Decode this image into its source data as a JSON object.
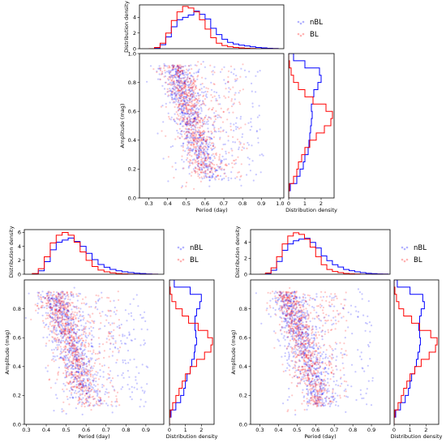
{
  "chart_data": [
    {
      "type": "scatter",
      "panel": "top",
      "xlabel": "Period (day)",
      "ylabel": "Amplitude (mag)",
      "xlim": [
        0.25,
        1.02
      ],
      "ylim": [
        0.0,
        1.0
      ],
      "xticks": [
        "0.3",
        "0.4",
        "0.5",
        "0.6",
        "0.7",
        "0.8",
        "0.9",
        "1.0"
      ],
      "yticks": [
        "0.0",
        "0.2",
        "0.4",
        "0.6",
        "0.8",
        "1.0"
      ],
      "legend": {
        "entries": [
          "nBL",
          "BL"
        ],
        "position": "top-right, outside"
      },
      "series": [
        {
          "name": "nBL",
          "color": "#0000ff",
          "trend": {
            "p_at_amp_high": 0.44,
            "p_at_amp_low": 0.62,
            "spread": 0.06,
            "tail_to": 0.95
          }
        },
        {
          "name": "BL",
          "color": "#ff0000",
          "trend": {
            "p_at_amp_high": 0.45,
            "p_at_amp_low": 0.61,
            "spread": 0.055,
            "tail_to": 0.85
          }
        }
      ],
      "top_hist": {
        "ylabel": "Distribution density",
        "ylim": [
          0,
          5.6
        ],
        "yticks": [
          "0",
          "2",
          "4"
        ],
        "bin_edges": [
          0.3,
          0.33,
          0.36,
          0.39,
          0.42,
          0.45,
          0.48,
          0.51,
          0.54,
          0.57,
          0.6,
          0.63,
          0.66,
          0.69,
          0.72,
          0.75,
          0.78,
          0.81,
          0.84,
          0.87,
          0.9,
          0.93,
          0.96,
          0.99
        ],
        "nBL": [
          0.0,
          0.1,
          0.5,
          1.5,
          2.8,
          3.7,
          4.0,
          4.3,
          4.8,
          4.4,
          3.8,
          2.6,
          1.8,
          1.2,
          0.8,
          0.6,
          0.45,
          0.35,
          0.25,
          0.15,
          0.1,
          0.05,
          0.02
        ],
        "BL": [
          0.0,
          0.15,
          0.7,
          2.0,
          3.6,
          4.7,
          5.4,
          5.2,
          4.7,
          3.7,
          2.5,
          1.4,
          0.7,
          0.4,
          0.25,
          0.15,
          0.1,
          0.05,
          0.02,
          0.0,
          0.0,
          0.0,
          0.0
        ]
      },
      "right_hist": {
        "xlabel": "Distribution density",
        "xlim": [
          0,
          2.8
        ],
        "xticks": [
          "0",
          "1",
          "2"
        ],
        "bin_edges": [
          0.0,
          0.05,
          0.1,
          0.15,
          0.2,
          0.25,
          0.3,
          0.35,
          0.4,
          0.45,
          0.5,
          0.55,
          0.6,
          0.65,
          0.7,
          0.75,
          0.8,
          0.85,
          0.9,
          0.95,
          1.0
        ],
        "nBL": [
          0.0,
          0.1,
          0.5,
          0.7,
          0.9,
          1.0,
          1.2,
          1.25,
          1.3,
          1.35,
          1.4,
          1.45,
          1.4,
          1.5,
          1.55,
          1.8,
          2.0,
          1.9,
          1.0,
          0.3
        ],
        "BL": [
          0.0,
          0.05,
          0.3,
          0.5,
          0.6,
          0.8,
          1.0,
          1.3,
          1.7,
          2.2,
          2.6,
          2.7,
          2.3,
          1.5,
          1.0,
          0.6,
          0.3,
          0.15,
          0.05,
          0.0
        ]
      }
    },
    {
      "type": "scatter",
      "panel": "bottom-left",
      "xlabel": "Period (day)",
      "ylabel": "Amplitude (mag)",
      "xlim": [
        0.29,
        0.99
      ],
      "ylim": [
        0.0,
        1.0
      ],
      "xticks": [
        "0.3",
        "0.4",
        "0.5",
        "0.6",
        "0.7",
        "0.8",
        "0.9"
      ],
      "yticks": [
        "0.0",
        "0.2",
        "0.4",
        "0.6",
        "0.8"
      ],
      "legend": {
        "entries": [
          "nBL",
          "BL"
        ],
        "position": "top-right, outside"
      },
      "series": [
        {
          "name": "nBL",
          "color": "#0000ff",
          "trend": {
            "p_at_amp_high": 0.44,
            "p_at_amp_low": 0.62,
            "spread": 0.06,
            "tail_to": 0.95
          }
        },
        {
          "name": "BL",
          "color": "#ff0000",
          "trend": {
            "p_at_amp_high": 0.45,
            "p_at_amp_low": 0.6,
            "spread": 0.06,
            "tail_to": 0.8
          }
        }
      ],
      "top_hist": {
        "ylabel": "Distribution density",
        "ylim": [
          0,
          6.4
        ],
        "yticks": [
          "0",
          "2",
          "4",
          "6"
        ],
        "bin_edges": [
          0.33,
          0.36,
          0.39,
          0.42,
          0.45,
          0.48,
          0.51,
          0.54,
          0.57,
          0.6,
          0.63,
          0.66,
          0.69,
          0.72,
          0.75,
          0.78,
          0.81,
          0.84,
          0.87,
          0.9,
          0.93,
          0.96
        ],
        "nBL": [
          0.0,
          0.5,
          1.8,
          3.5,
          4.6,
          4.9,
          5.2,
          4.7,
          4.0,
          3.0,
          2.1,
          1.4,
          1.0,
          0.7,
          0.5,
          0.35,
          0.25,
          0.15,
          0.1,
          0.05,
          0.02
        ],
        "BL": [
          0.1,
          0.8,
          2.5,
          4.5,
          5.6,
          6.0,
          5.6,
          4.6,
          3.2,
          2.0,
          1.1,
          0.6,
          0.35,
          0.2,
          0.1,
          0.05,
          0.02,
          0.0,
          0.0,
          0.0,
          0.0
        ]
      },
      "right_hist": {
        "xlabel": "Distribution density",
        "xlim": [
          0,
          2.8
        ],
        "xticks": [
          "0",
          "1",
          "2"
        ],
        "bin_edges": [
          0.0,
          0.05,
          0.1,
          0.15,
          0.2,
          0.25,
          0.3,
          0.35,
          0.4,
          0.45,
          0.5,
          0.55,
          0.6,
          0.65,
          0.7,
          0.75,
          0.8,
          0.85,
          0.9,
          0.95,
          1.0
        ],
        "nBL": [
          0.0,
          0.1,
          0.4,
          0.7,
          0.9,
          1.0,
          1.1,
          1.3,
          1.4,
          1.55,
          1.6,
          1.7,
          1.65,
          1.6,
          1.6,
          1.7,
          1.9,
          2.0,
          1.3,
          0.3
        ],
        "BL": [
          0.0,
          0.05,
          0.2,
          0.4,
          0.6,
          0.8,
          1.0,
          1.3,
          1.7,
          2.2,
          2.6,
          2.7,
          2.4,
          1.8,
          1.2,
          0.8,
          0.4,
          0.15,
          0.05,
          0.0
        ]
      }
    },
    {
      "type": "scatter",
      "panel": "bottom-right",
      "xlabel": "Period (day)",
      "ylabel": "Amplitude (mag)",
      "xlim": [
        0.25,
        1.0
      ],
      "ylim": [
        0.0,
        1.0
      ],
      "xticks": [
        "0.3",
        "0.4",
        "0.5",
        "0.6",
        "0.7",
        "0.8",
        "0.9"
      ],
      "yticks": [
        "0.0",
        "0.2",
        "0.4",
        "0.6",
        "0.8"
      ],
      "legend": {
        "entries": [
          "nBL",
          "BL"
        ],
        "position": "top-right, outside"
      },
      "series": [
        {
          "name": "nBL",
          "color": "#0000ff",
          "trend": {
            "p_at_amp_high": 0.44,
            "p_at_amp_low": 0.63,
            "spread": 0.06,
            "tail_to": 0.95
          }
        },
        {
          "name": "BL",
          "color": "#ff0000",
          "trend": {
            "p_at_amp_high": 0.45,
            "p_at_amp_low": 0.61,
            "spread": 0.055,
            "tail_to": 0.8
          }
        }
      ],
      "top_hist": {
        "ylabel": "Distribution density",
        "ylim": [
          0,
          5.6
        ],
        "yticks": [
          "0",
          "2",
          "4"
        ],
        "bin_edges": [
          0.3,
          0.33,
          0.36,
          0.39,
          0.42,
          0.45,
          0.48,
          0.51,
          0.54,
          0.57,
          0.6,
          0.63,
          0.66,
          0.69,
          0.72,
          0.75,
          0.78,
          0.81,
          0.84,
          0.87,
          0.9,
          0.93,
          0.96,
          0.99
        ],
        "nBL": [
          0.0,
          0.1,
          0.5,
          1.6,
          3.0,
          3.8,
          4.2,
          4.4,
          4.5,
          4.0,
          3.3,
          2.3,
          1.7,
          1.2,
          0.9,
          0.6,
          0.45,
          0.3,
          0.2,
          0.12,
          0.08,
          0.04,
          0.02
        ],
        "BL": [
          0.0,
          0.15,
          0.8,
          2.2,
          3.8,
          4.8,
          5.2,
          5.0,
          4.4,
          3.4,
          2.2,
          1.2,
          0.6,
          0.35,
          0.2,
          0.1,
          0.05,
          0.02,
          0.0,
          0.0,
          0.0,
          0.0,
          0.0
        ]
      },
      "right_hist": {
        "xlabel": "Distribution density",
        "xlim": [
          0,
          2.8
        ],
        "xticks": [
          "0",
          "1",
          "2"
        ],
        "bin_edges": [
          0.0,
          0.05,
          0.1,
          0.15,
          0.2,
          0.25,
          0.3,
          0.35,
          0.4,
          0.45,
          0.5,
          0.55,
          0.6,
          0.65,
          0.7,
          0.75,
          0.8,
          0.85,
          0.9,
          0.95,
          1.0
        ],
        "nBL": [
          0.0,
          0.1,
          0.4,
          0.7,
          0.9,
          1.0,
          1.1,
          1.3,
          1.4,
          1.5,
          1.6,
          1.65,
          1.6,
          1.55,
          1.6,
          1.7,
          1.9,
          1.8,
          1.0,
          0.2
        ],
        "BL": [
          0.0,
          0.05,
          0.25,
          0.45,
          0.6,
          0.8,
          1.0,
          1.3,
          1.7,
          2.2,
          2.6,
          2.7,
          2.3,
          1.6,
          1.1,
          0.6,
          0.3,
          0.15,
          0.05,
          0.0
        ]
      }
    }
  ]
}
